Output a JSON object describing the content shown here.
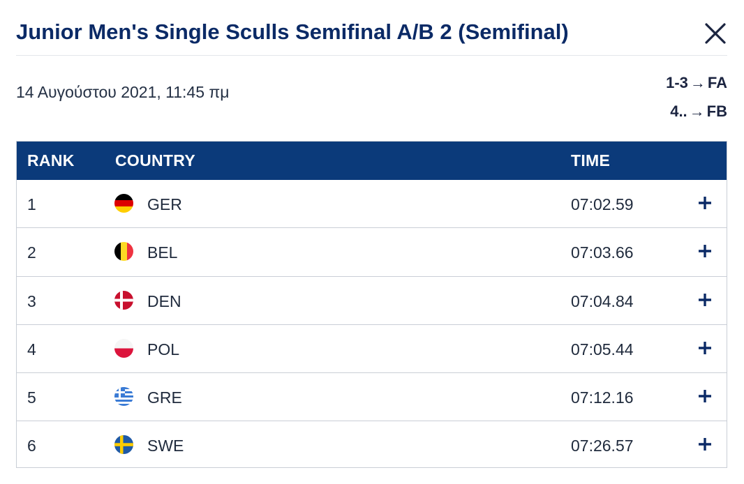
{
  "header": {
    "title": "Junior Men's Single Sculls Semifinal A/B 2 (Semifinal)"
  },
  "event": {
    "date": "14 Αυγούστου 2021, 11:45 πμ",
    "progression": [
      {
        "places": "1-3",
        "arrow": "→",
        "final": "FA"
      },
      {
        "places": "4..",
        "arrow": "→",
        "final": "FB"
      }
    ]
  },
  "table": {
    "headers": {
      "rank": "RANK",
      "country": "COUNTRY",
      "time": "TIME"
    },
    "rows": [
      {
        "rank": "1",
        "country": "GER",
        "time": "07:02.59",
        "flag": "germany-flag",
        "expand": "+"
      },
      {
        "rank": "2",
        "country": "BEL",
        "time": "07:03.66",
        "flag": "belgium-flag",
        "expand": "+"
      },
      {
        "rank": "3",
        "country": "DEN",
        "time": "07:04.84",
        "flag": "denmark-flag",
        "expand": "+"
      },
      {
        "rank": "4",
        "country": "POL",
        "time": "07:05.44",
        "flag": "poland-flag",
        "expand": "+"
      },
      {
        "rank": "5",
        "country": "GRE",
        "time": "07:12.16",
        "flag": "greece-flag",
        "expand": "+"
      },
      {
        "rank": "6",
        "country": "SWE",
        "time": "07:26.57",
        "flag": "sweden-flag",
        "expand": "+"
      }
    ]
  },
  "colors": {
    "title": "#0b2a66",
    "header_bg": "#0b3a7a",
    "border": "#c9ced6"
  }
}
